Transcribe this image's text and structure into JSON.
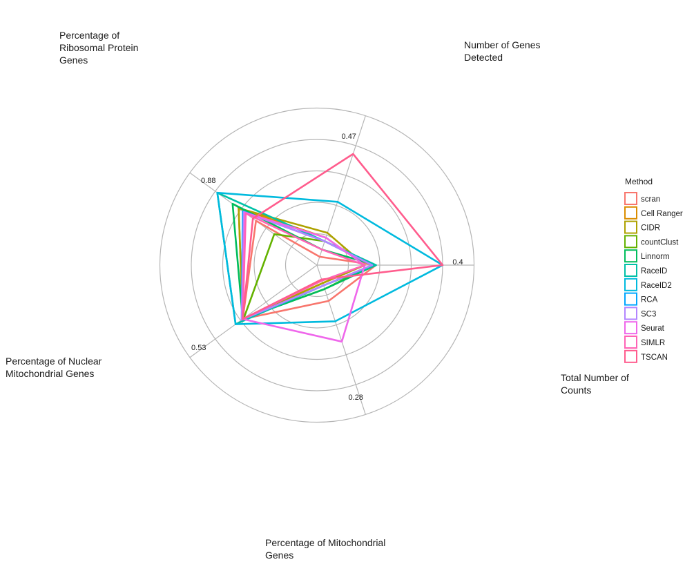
{
  "chart_data": {
    "type": "radar",
    "axes": [
      {
        "label_lines": [
          "Percentage of",
          "Ribosomal Protein",
          "Genes"
        ],
        "max_label": "0.88"
      },
      {
        "label_lines": [
          "Number of Genes",
          "Detected"
        ],
        "max_label": "0.47"
      },
      {
        "label_lines": [
          "Total Number of",
          "Counts"
        ],
        "max_label": "0.4"
      },
      {
        "label_lines": [
          "Percentage of Mitochondrial",
          "Genes"
        ],
        "max_label": "0.28"
      },
      {
        "label_lines": [
          "Percentage of Nuclear",
          "Mitochondrial Genes"
        ],
        "max_label": "0.53"
      }
    ],
    "legend": {
      "title": "Method",
      "position": "right"
    },
    "series": [
      {
        "name": "scran",
        "color": "#F8766D",
        "values": [
          0.6,
          0.07,
          0.47,
          0.3,
          0.73
        ]
      },
      {
        "name": "Cell Ranger",
        "color": "#DB8E00",
        "values": [
          0.77,
          0.23,
          0.38,
          0.15,
          0.73
        ]
      },
      {
        "name": "CIDR",
        "color": "#AEA200",
        "values": [
          0.77,
          0.27,
          0.38,
          0.15,
          0.73
        ]
      },
      {
        "name": "countClust",
        "color": "#64B200",
        "values": [
          0.42,
          0.2,
          0.44,
          0.2,
          0.72
        ]
      },
      {
        "name": "Linnorm",
        "color": "#00BD5C",
        "values": [
          0.83,
          0.13,
          0.47,
          0.2,
          0.73
        ]
      },
      {
        "name": "RaceID",
        "color": "#00C1A7",
        "values": [
          0.98,
          0.2,
          0.47,
          0.17,
          0.8
        ]
      },
      {
        "name": "RaceID2",
        "color": "#00BADE",
        "values": [
          0.98,
          0.53,
          1.0,
          0.47,
          0.8
        ]
      },
      {
        "name": "RCA",
        "color": "#00A6FF",
        "values": [
          0.73,
          0.2,
          0.44,
          0.17,
          0.74
        ]
      },
      {
        "name": "SC3",
        "color": "#B385FF",
        "values": [
          0.72,
          0.2,
          0.44,
          0.17,
          0.74
        ]
      },
      {
        "name": "Seurat",
        "color": "#EF67EB",
        "values": [
          0.71,
          0.23,
          0.38,
          0.64,
          0.73
        ]
      },
      {
        "name": "SIMLR",
        "color": "#FF63B6",
        "values": [
          0.7,
          0.13,
          0.38,
          0.13,
          0.73
        ]
      },
      {
        "name": "TSCAN",
        "color": "#FF5C8D",
        "values": [
          0.63,
          0.93,
          1.0,
          0.12,
          0.73
        ]
      }
    ],
    "scale_rings": [
      0.0,
      0.25,
      0.5,
      0.75,
      1.0,
      1.25
    ],
    "grid": true
  }
}
